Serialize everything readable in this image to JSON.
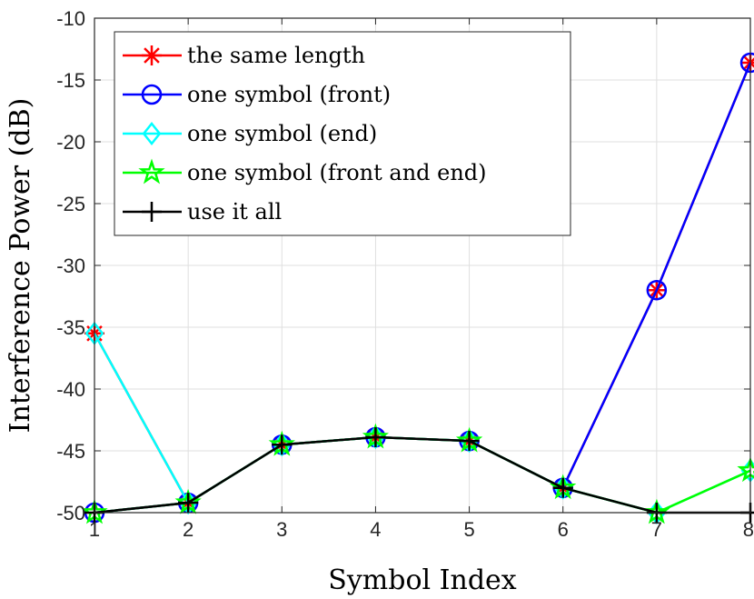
{
  "chart_data": {
    "type": "line",
    "xlabel": "Symbol Index",
    "ylabel": "Interference Power (dB)",
    "xlim": [
      1,
      8
    ],
    "ylim": [
      -50,
      -10
    ],
    "xticks": [
      "1",
      "2",
      "3",
      "4",
      "5",
      "6",
      "7",
      "8"
    ],
    "yticks": [
      "-10",
      "-15",
      "-20",
      "-25",
      "-30",
      "-35",
      "-40",
      "-45",
      "-50"
    ],
    "grid": true,
    "legend_position": "top-left",
    "x": [
      1,
      2,
      3,
      4,
      5,
      6,
      7,
      8
    ],
    "series": [
      {
        "name": "the same length",
        "color": "#ff0000",
        "marker": "asterisk",
        "values": [
          -35.5,
          -49.2,
          -44.5,
          -43.9,
          -44.2,
          -48.0,
          -32.0,
          -13.6
        ]
      },
      {
        "name": "one symbol (front)",
        "color": "#0000ff",
        "marker": "circle",
        "values": [
          -50.0,
          -49.2,
          -44.5,
          -43.9,
          -44.2,
          -48.0,
          -32.0,
          -13.6
        ]
      },
      {
        "name": "one symbol (end)",
        "color": "#00ffff",
        "marker": "diamond",
        "values": [
          -35.5,
          -49.2,
          -44.5,
          -43.9,
          -44.2,
          -48.0,
          -50.0,
          -46.6
        ]
      },
      {
        "name": "one symbol (front and end)",
        "color": "#00ff00",
        "marker": "star",
        "values": [
          -50.0,
          -49.2,
          -44.5,
          -43.9,
          -44.2,
          -48.0,
          -50.0,
          -46.6
        ]
      },
      {
        "name": "use it all",
        "color": "#000000",
        "marker": "plus",
        "values": [
          -50.0,
          -49.2,
          -44.5,
          -43.9,
          -44.2,
          -48.0,
          -50.0,
          -50.0
        ]
      }
    ]
  }
}
